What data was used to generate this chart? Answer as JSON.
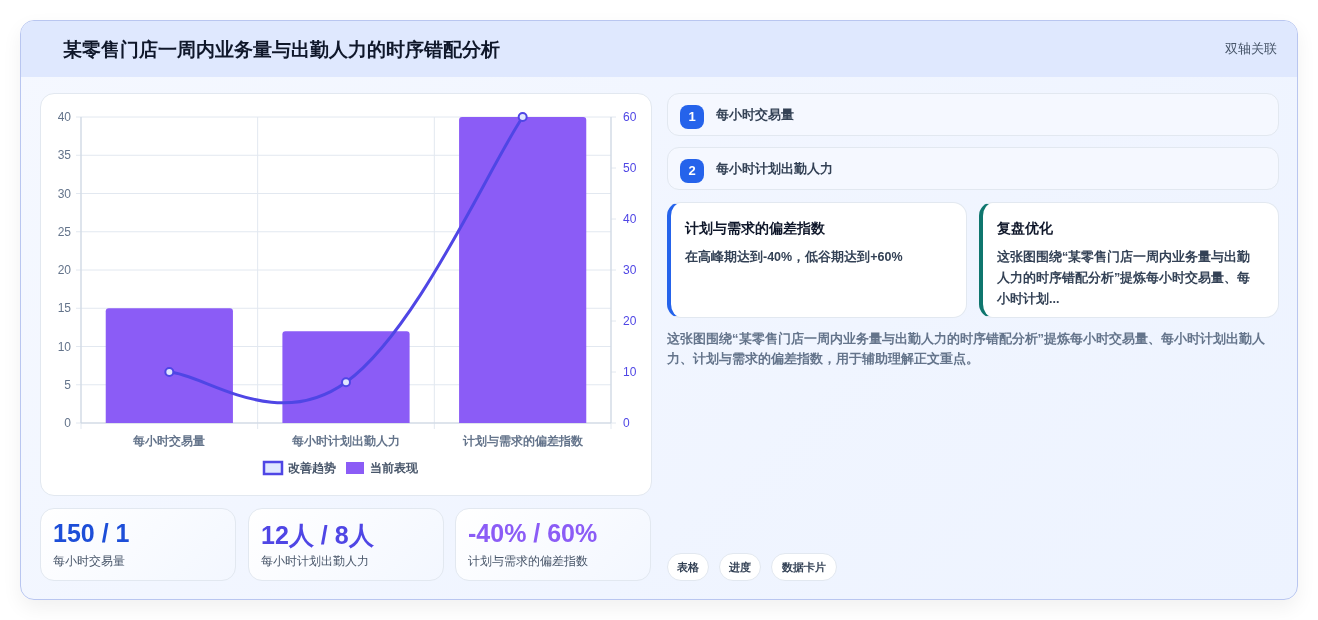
{
  "chart_data": [
    {
      "type": "bar",
      "title": "某零售门店一周内业务量与出勤人力的时序错配分析",
      "categories": [
        "每小时交易量",
        "每小时计划出勤人力",
        "计划与需求的偏差指数"
      ],
      "series": [
        {
          "name": "改善趋势",
          "type": "line",
          "axis": "y2",
          "color": "#4f46e5",
          "values": [
            10,
            8,
            60
          ]
        },
        {
          "name": "当前表现",
          "type": "bar",
          "color": "#8b5cf6",
          "values": [
            15,
            12,
            40
          ]
        }
      ],
      "ylim": [
        0,
        40
      ],
      "yticks": [
        0,
        5,
        10,
        15,
        20,
        25,
        30,
        35,
        40
      ],
      "y2lim": [
        0,
        60
      ],
      "y2ticks": [
        0,
        10,
        20,
        30,
        40,
        50,
        60
      ],
      "grid": true,
      "legend": "bottom",
      "marker": "circle"
    },
    {
      "type": "other",
      "annotations": [
        "1",
        "每小时交易量",
        "2",
        "每小时计划出勤人力",
        "计划与需求的偏差指数",
        "在高峰期达到-40%，低谷期达到+60%",
        "复盘优化",
        "这张图围绕“某零售门店一周内业务量与出勤人力的时序错配分析”提炼每小时交易量、每小时计划...",
        "这张图围绕“某零售门店一周内业务量与出勤人力的时序错配分析”提炼每小时交易量、每小时计划出勤人力、计划与需求的偏差指数，用于辅助理解正文重点。",
        "150 / 1",
        "每小时交易量",
        "12人 / 8人",
        "每小时计划出勤人力",
        "-40% / 60%",
        "计划与需求的偏差指数",
        "表格",
        "进度",
        "数据卡片",
        "双轴关联"
      ]
    }
  ]
}
